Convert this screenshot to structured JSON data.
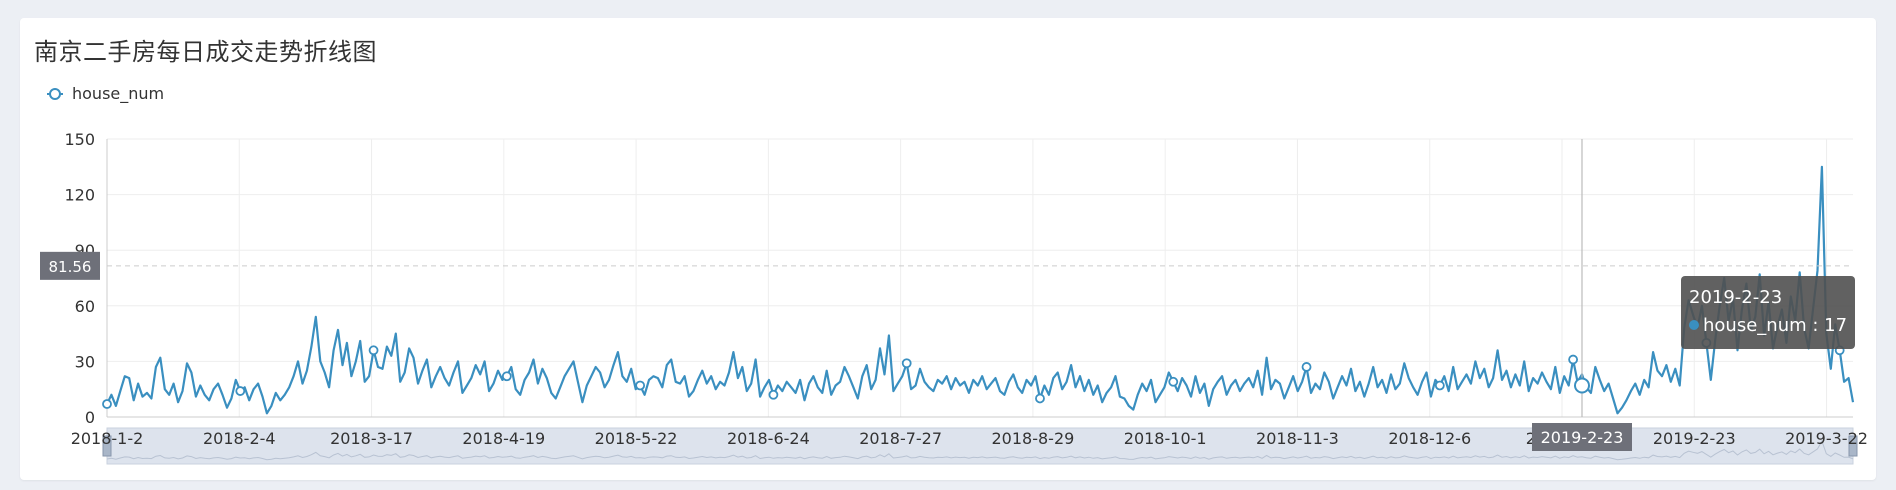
{
  "page": {
    "title": "南京二手房每日成交走势折线图"
  },
  "chart_data": {
    "type": "line",
    "title": "南京二手房每日成交走势折线图",
    "xlabel": "",
    "ylabel": "",
    "ylim": [
      0,
      150
    ],
    "yticks": [
      0,
      30,
      60,
      90,
      120,
      150
    ],
    "xticks": [
      "2018-1-2",
      "2018-2-4",
      "2018-3-17",
      "2018-4-19",
      "2018-5-22",
      "2018-6-24",
      "2018-7-27",
      "2018-8-29",
      "2018-10-1",
      "2018-11-3",
      "2018-12-6",
      "2019-1-8",
      "2019-2-23",
      "2019-3-22"
    ],
    "grid": true,
    "legend": "top-left",
    "series": [
      {
        "name": "house_num",
        "color": "#3a8fc0",
        "values": [
          7,
          12,
          6,
          14,
          22,
          21,
          9,
          18,
          11,
          13,
          10,
          27,
          32,
          15,
          12,
          18,
          8,
          14,
          29,
          24,
          11,
          17,
          12,
          9,
          15,
          18,
          12,
          5,
          10,
          20,
          14,
          16,
          9,
          15,
          18,
          11,
          2,
          6,
          13,
          9,
          12,
          16,
          22,
          30,
          18,
          25,
          38,
          54,
          30,
          24,
          16,
          36,
          47,
          28,
          40,
          22,
          30,
          41,
          19,
          22,
          36,
          27,
          26,
          38,
          33,
          45,
          19,
          24,
          37,
          32,
          18,
          25,
          31,
          16,
          22,
          27,
          21,
          17,
          24,
          30,
          13,
          17,
          21,
          28,
          23,
          30,
          14,
          18,
          25,
          20,
          22,
          27,
          15,
          12,
          20,
          24,
          31,
          18,
          26,
          21,
          13,
          10,
          16,
          22,
          26,
          30,
          19,
          8,
          17,
          22,
          27,
          24,
          16,
          20,
          28,
          35,
          22,
          19,
          26,
          15,
          17,
          12,
          20,
          22,
          21,
          16,
          28,
          31,
          19,
          18,
          22,
          11,
          14,
          20,
          25,
          18,
          22,
          15,
          19,
          17,
          24,
          35,
          21,
          27,
          14,
          18,
          31,
          11,
          16,
          20,
          12,
          17,
          14,
          19,
          16,
          13,
          20,
          9,
          18,
          22,
          16,
          13,
          25,
          12,
          17,
          19,
          27,
          22,
          16,
          10,
          22,
          28,
          15,
          20,
          37,
          23,
          44,
          14,
          18,
          22,
          29,
          15,
          17,
          26,
          19,
          16,
          14,
          20,
          18,
          22,
          15,
          21,
          17,
          19,
          13,
          20,
          17,
          22,
          15,
          18,
          21,
          14,
          12,
          19,
          23,
          16,
          13,
          20,
          17,
          22,
          10,
          17,
          12,
          21,
          24,
          15,
          19,
          28,
          16,
          22,
          14,
          20,
          12,
          17,
          8,
          13,
          16,
          22,
          11,
          10,
          6,
          4,
          12,
          18,
          14,
          20,
          8,
          12,
          16,
          24,
          19,
          14,
          21,
          17,
          11,
          22,
          13,
          18,
          6,
          15,
          19,
          22,
          12,
          17,
          20,
          14,
          18,
          21,
          16,
          25,
          12,
          32,
          15,
          20,
          18,
          10,
          16,
          22,
          14,
          19,
          27,
          13,
          18,
          15,
          24,
          19,
          10,
          16,
          22,
          17,
          26,
          14,
          19,
          11,
          18,
          27,
          16,
          20,
          13,
          23,
          15,
          18,
          29,
          21,
          16,
          12,
          19,
          24,
          11,
          20,
          17,
          22,
          14,
          27,
          15,
          19,
          23,
          18,
          30,
          21,
          26,
          16,
          21,
          36,
          20,
          25,
          16,
          23,
          17,
          30,
          14,
          21,
          18,
          24,
          19,
          15,
          27,
          13,
          22,
          17,
          31,
          19,
          23,
          16,
          13,
          27,
          20,
          14,
          18,
          10,
          2,
          5,
          9,
          14,
          18,
          12,
          20,
          16,
          35,
          25,
          22,
          28,
          19,
          26,
          17,
          48,
          63,
          55,
          48,
          60,
          40,
          20,
          42,
          60,
          75,
          52,
          64,
          36,
          58,
          72,
          47,
          54,
          77,
          44,
          62,
          37,
          49,
          58,
          40,
          65,
          52,
          78,
          48,
          37,
          58,
          79,
          135,
          45,
          26,
          50,
          36,
          19,
          21,
          8
        ]
      }
    ],
    "hover": {
      "date": "2019-2-23",
      "series_name": "house_num",
      "value": 17,
      "value_text": "house_num : 17",
      "y_readout": "81.56"
    }
  }
}
